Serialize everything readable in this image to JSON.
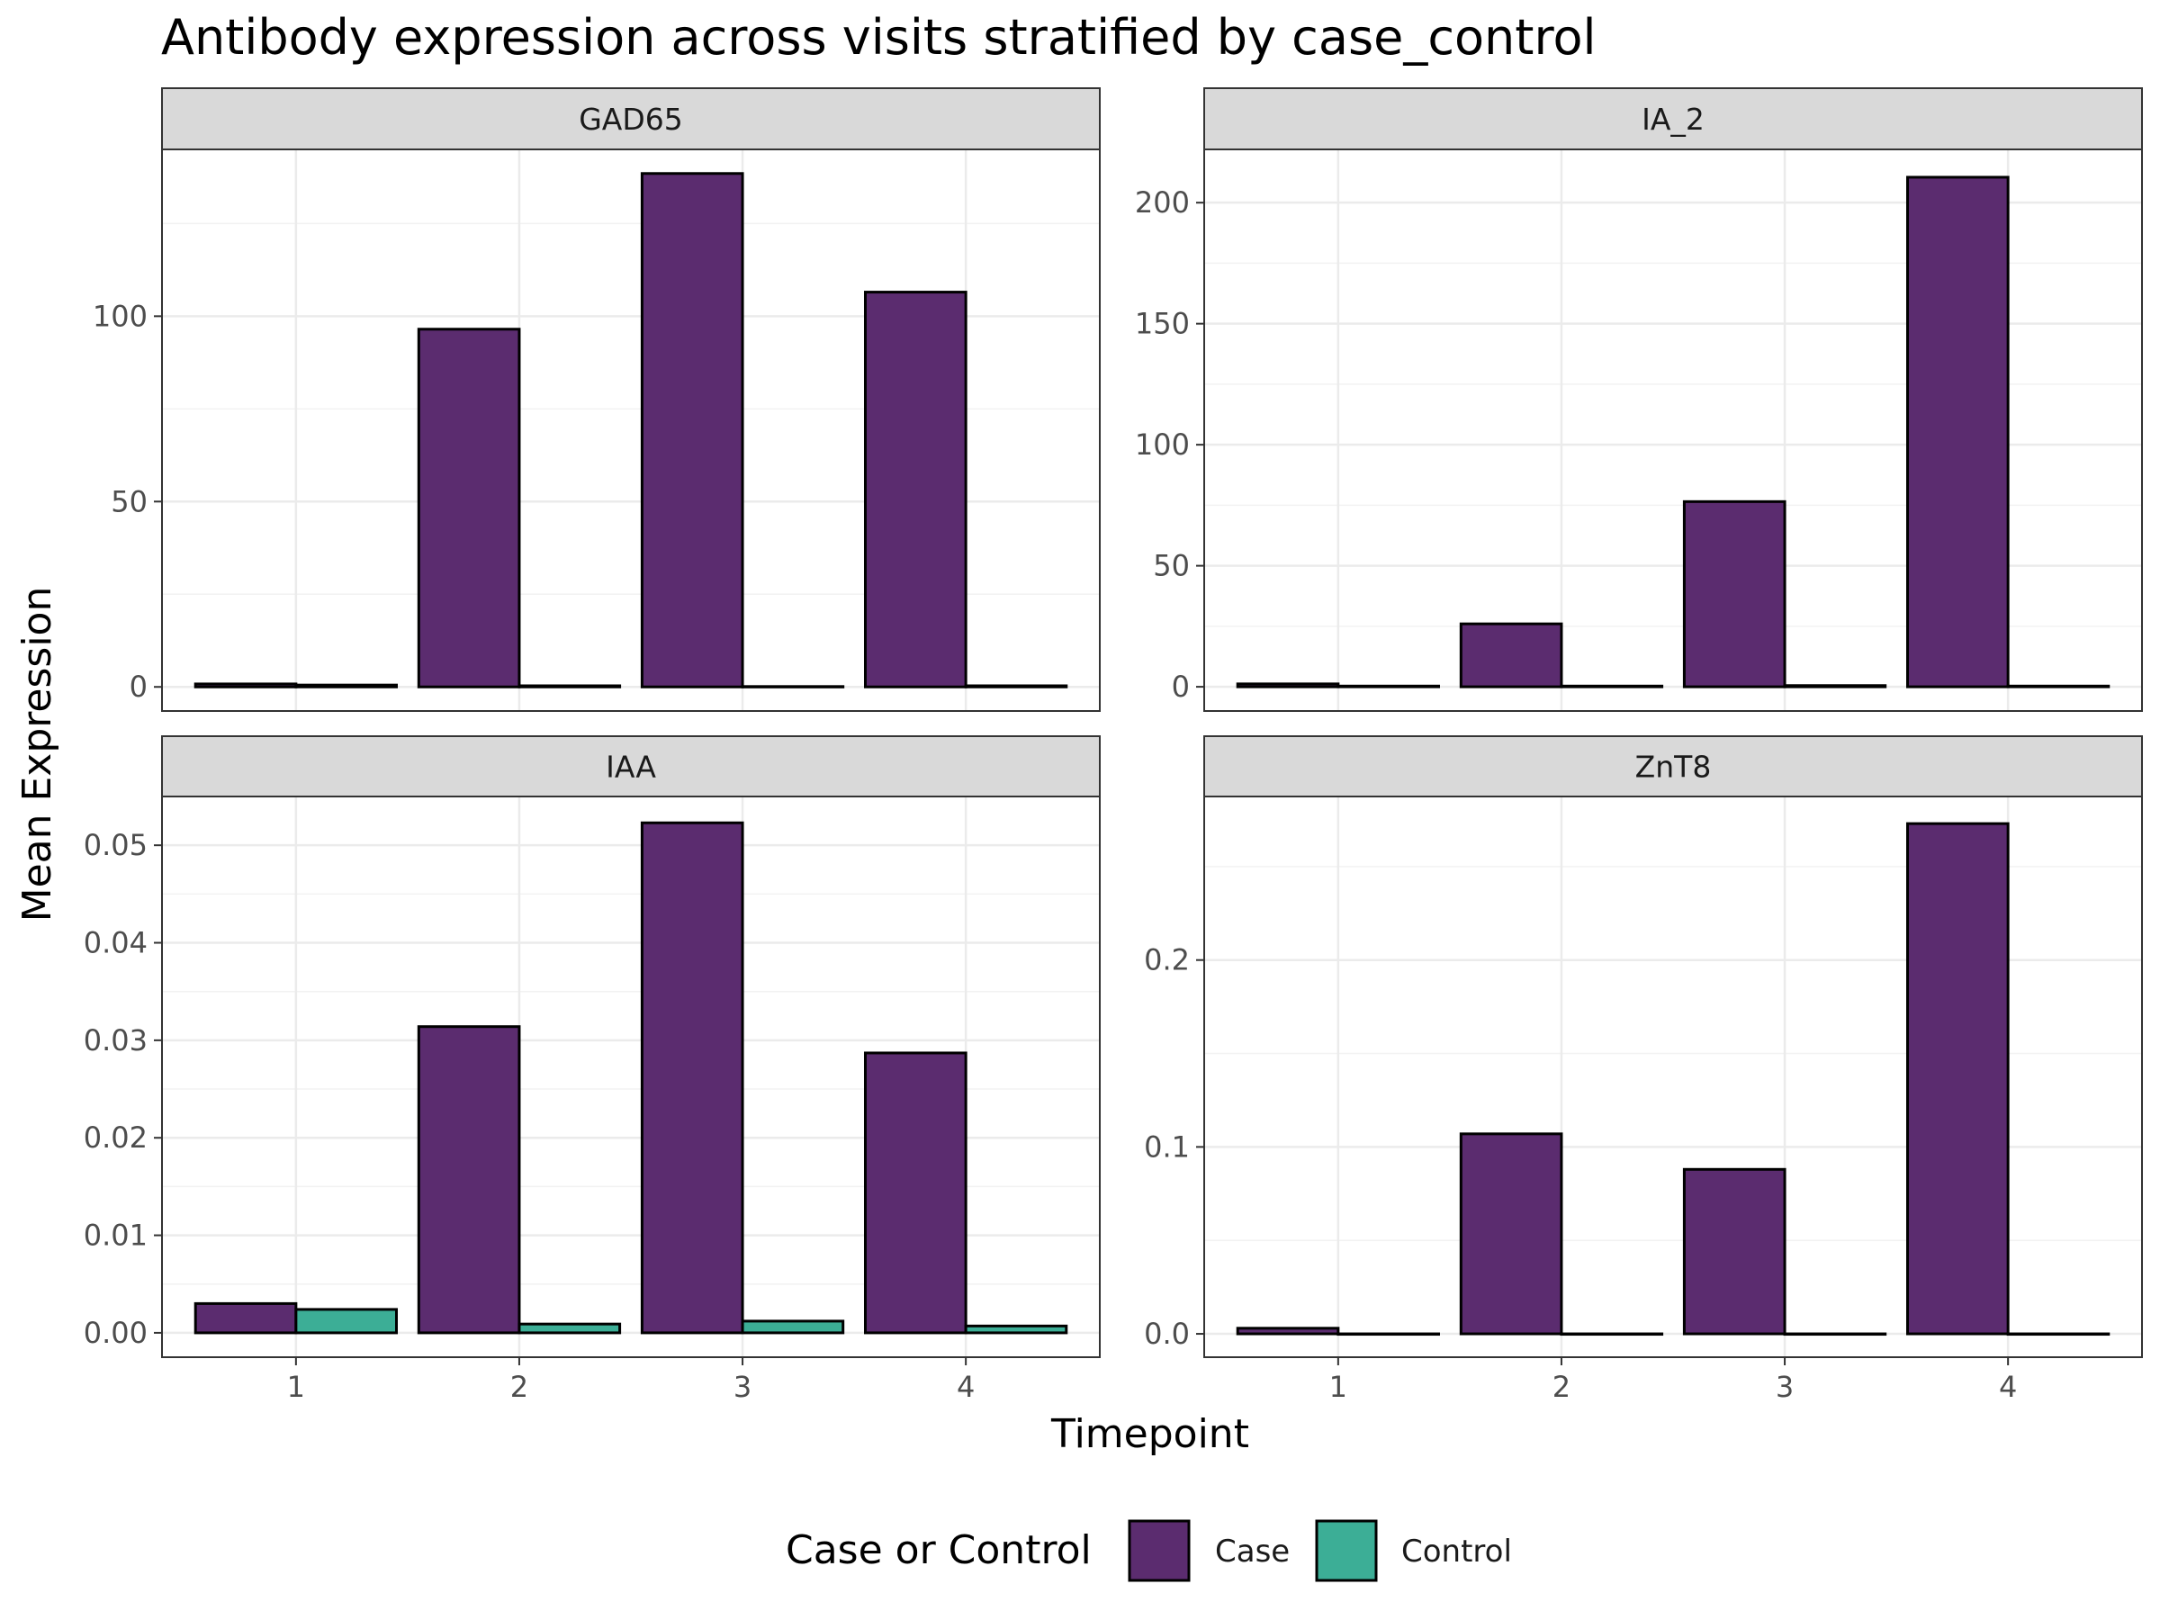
{
  "chart_data": {
    "type": "bar",
    "title": "Antibody expression across visits stratified by case_control",
    "xlabel": "Timepoint",
    "ylabel": "Mean Expression",
    "categories": [
      "1",
      "2",
      "3",
      "4"
    ],
    "grid": true,
    "legend": {
      "title": "Case or Control",
      "placement": "bottom",
      "entries": [
        {
          "name": "Case",
          "color": "#5b2c6f"
        },
        {
          "name": "Control",
          "color": "#3cae96"
        }
      ]
    },
    "colors": {
      "case": "#5b2c6f",
      "control": "#3cae96",
      "strip": "#d9d9d9"
    },
    "panels": [
      {
        "label": "GAD65",
        "ylim": [
          -6.5,
          145
        ],
        "yticks": [
          0,
          50,
          100
        ],
        "ytick_labels": [
          "0",
          "50",
          "100"
        ],
        "series": [
          {
            "name": "Case",
            "values": [
              0.8,
              96.5,
              138.5,
              106.5
            ]
          },
          {
            "name": "Control",
            "values": [
              0.5,
              0.3,
              0.1,
              0.3
            ]
          }
        ]
      },
      {
        "label": "IA_2",
        "ylim": [
          -10,
          222
        ],
        "yticks": [
          0,
          50,
          100,
          150,
          200
        ],
        "ytick_labels": [
          "0",
          "50",
          "100",
          "150",
          "200"
        ],
        "series": [
          {
            "name": "Case",
            "values": [
              1.2,
              26,
              76.5,
              210.5
            ]
          },
          {
            "name": "Control",
            "values": [
              0.3,
              0.3,
              0.5,
              0.3
            ]
          }
        ]
      },
      {
        "label": "IAA",
        "ylim": [
          -0.0025,
          0.055
        ],
        "yticks": [
          0,
          0.01,
          0.02,
          0.03,
          0.04,
          0.05
        ],
        "ytick_labels": [
          "0.00",
          "0.01",
          "0.02",
          "0.03",
          "0.04",
          "0.05"
        ],
        "series": [
          {
            "name": "Case",
            "values": [
              0.003,
              0.0314,
              0.0523,
              0.0287
            ]
          },
          {
            "name": "Control",
            "values": [
              0.0024,
              0.0009,
              0.0012,
              0.0007
            ]
          }
        ]
      },
      {
        "label": "ZnT8",
        "ylim": [
          -0.0125,
          0.2875
        ],
        "yticks": [
          0,
          0.1,
          0.2
        ],
        "ytick_labels": [
          "0.0",
          "0.1",
          "0.2"
        ],
        "series": [
          {
            "name": "Case",
            "values": [
              0.003,
              0.107,
              0.088,
              0.273
            ]
          },
          {
            "name": "Control",
            "values": [
              0,
              0,
              0,
              0
            ]
          }
        ]
      }
    ]
  }
}
